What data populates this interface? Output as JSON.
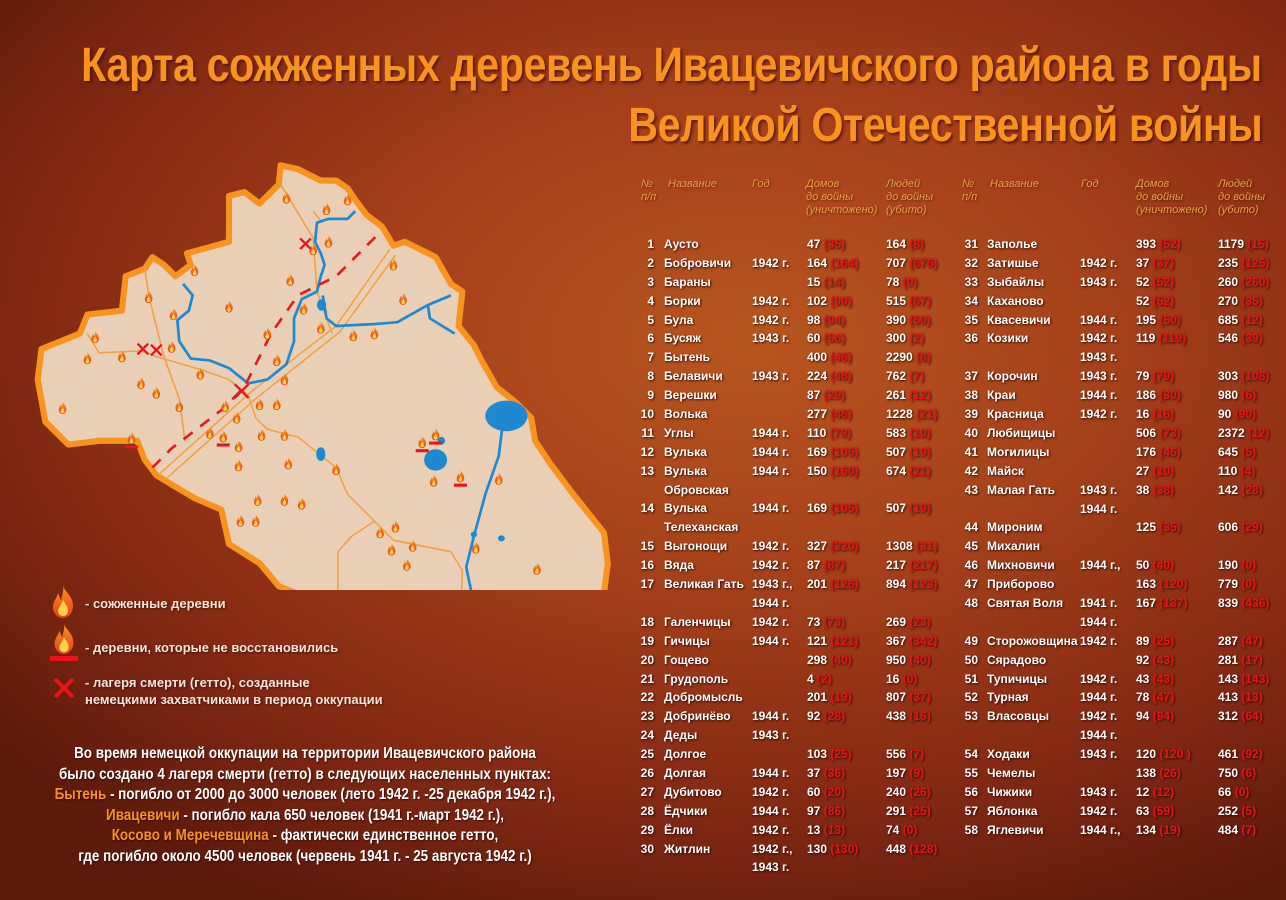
{
  "title": {
    "line1": "Карта сожженных деревень Ивацевичского района в годы",
    "line2": "Великой Отечественной войны"
  },
  "colors": {
    "title": "#f7931e",
    "map_fill": "#e8cfb6",
    "border": "#f7931e",
    "river": "#1e88d0",
    "road": "#f0a040",
    "railway": "#e01e1e",
    "destroyed_value": "#e8141a",
    "header": "#e9a04a"
  },
  "table": {
    "headers": {
      "num": "№\nп/п",
      "name": "Название",
      "year": "Год",
      "houses": "Домов\nдо войны\n(уничтожено)",
      "people": "Людей\nдо войны\n(убито)"
    },
    "left_rows": [
      {
        "n": "1",
        "name": "Аусто",
        "year": "",
        "h": "47",
        "hd": "35",
        "p": "164",
        "pk": "8"
      },
      {
        "n": "2",
        "name": "Бобровичи",
        "year": "1942 г.",
        "h": "164",
        "hd": "164",
        "p": "707",
        "pk": "676"
      },
      {
        "n": "3",
        "name": "Бараны",
        "year": "",
        "h": "15",
        "hd": "14",
        "p": "78",
        "pk": "0"
      },
      {
        "n": "4",
        "name": "Борки",
        "year": "1942 г.",
        "h": "102",
        "hd": "90",
        "p": "515",
        "pk": "57"
      },
      {
        "n": "5",
        "name": "Була",
        "year": "1942 г.",
        "h": "98",
        "hd": "94",
        "p": "390",
        "pk": "50"
      },
      {
        "n": "6",
        "name": "Бусяж",
        "year": "1943 г.",
        "h": "60",
        "hd": "56",
        "p": "300",
        "pk": "2"
      },
      {
        "n": "7",
        "name": "Бытень",
        "year": "",
        "h": "400",
        "hd": "46",
        "p": "2290",
        "pk": "8"
      },
      {
        "n": "8",
        "name": "Белавичи",
        "year": "1943 г.",
        "h": "224",
        "hd": "48",
        "p": "762",
        "pk": "7"
      },
      {
        "n": "9",
        "name": "Верешки",
        "year": "",
        "h": "87",
        "hd": "29",
        "p": "261",
        "pk": "12"
      },
      {
        "n": "10",
        "name": "Волька",
        "year": "",
        "h": "277",
        "hd": "46",
        "p": "1228",
        "pk": "21"
      },
      {
        "n": "11",
        "name": "Углы",
        "year": "1944 г.",
        "h": "110",
        "hd": "79",
        "p": "583",
        "pk": "10"
      },
      {
        "n": "12",
        "name": "Вулька",
        "year": "1944 г.",
        "h": "169",
        "hd": "105",
        "p": "507",
        "pk": "19"
      },
      {
        "n": "13",
        "name": "Вулька\nОбровская",
        "year": "1944 г.",
        "h": "150",
        "hd": "150",
        "p": "674",
        "pk": "21"
      },
      {
        "n": "14",
        "name": "Вулька\nТелеханская",
        "year": "1944 г.",
        "h": "169",
        "hd": "105",
        "p": "507",
        "pk": "19"
      },
      {
        "n": "15",
        "name": "Выгонощи",
        "year": "1942 г.",
        "h": "327",
        "hd": "320",
        "p": "1308",
        "pk": "31"
      },
      {
        "n": "16",
        "name": "Вяда",
        "year": "1942 г.",
        "h": "87",
        "hd": "87",
        "p": "217",
        "pk": "217"
      },
      {
        "n": "17",
        "name": "Великая Гать",
        "year": "1943 г.,\n1944 г.",
        "h": "201",
        "hd": "126",
        "p": "894",
        "pk": "123"
      },
      {
        "n": "18",
        "name": "Галенчицы",
        "year": "1942 г.",
        "h": "73",
        "hd": "73",
        "p": "269",
        "pk": "23"
      },
      {
        "n": "19",
        "name": "Гичицы",
        "year": "1944 г.",
        "h": "121",
        "hd": "121",
        "p": "367",
        "pk": "342"
      },
      {
        "n": "20",
        "name": "Гощево",
        "year": "",
        "h": "298",
        "hd": "40",
        "p": "950",
        "pk": "40"
      },
      {
        "n": "21",
        "name": "Грудополь",
        "year": "",
        "h": "4",
        "hd": "2",
        "p": "16",
        "pk": "0"
      },
      {
        "n": "22",
        "name": "Добромысль",
        "year": "",
        "h": "201",
        "hd": "19",
        "p": "807",
        "pk": "37"
      },
      {
        "n": "23",
        "name": "Добринёво",
        "year": "1944 г.",
        "h": "92",
        "hd": "28",
        "p": "438",
        "pk": "16"
      },
      {
        "n": "24",
        "name": "Деды",
        "year": "1943 г.",
        "h": "",
        "hd": "",
        "p": "",
        "pk": ""
      },
      {
        "n": "25",
        "name": "Долгое",
        "year": "",
        "h": "103",
        "hd": "25",
        "p": "556",
        "pk": "7"
      },
      {
        "n": "26",
        "name": "Долгая",
        "year": "1944 г.",
        "h": "37",
        "hd": "36",
        "p": "197",
        "pk": "9"
      },
      {
        "n": "27",
        "name": "Дубитово",
        "year": "1942 г.",
        "h": "60",
        "hd": "20",
        "p": "240",
        "pk": "26"
      },
      {
        "n": "28",
        "name": "Ёдчики",
        "year": "1944 г.",
        "h": "97",
        "hd": "86",
        "p": "291",
        "pk": "25"
      },
      {
        "n": "29",
        "name": "Ёлки",
        "year": "1942 г.",
        "h": "13",
        "hd": "13",
        "p": "74",
        "pk": "0"
      },
      {
        "n": "30",
        "name": "Житлин",
        "year": "1942 г.,\n1943 г.",
        "h": "130",
        "hd": "130",
        "p": "448",
        "pk": "128"
      }
    ],
    "right_rows": [
      {
        "n": "31",
        "name": "Заполье",
        "year": "",
        "h": "393",
        "hd": "52",
        "p": "1179",
        "pk": "15"
      },
      {
        "n": "32",
        "name": "Затишье",
        "year": "1942 г.",
        "h": "37",
        "hd": "37",
        "p": "235",
        "pk": "125"
      },
      {
        "n": "33",
        "name": "Зыбайлы",
        "year": "1943 г.",
        "h": "52",
        "hd": "52",
        "p": "260",
        "pk": "260"
      },
      {
        "n": "34",
        "name": "Каханово",
        "year": "",
        "h": "52",
        "hd": "52",
        "p": "270",
        "pk": "35"
      },
      {
        "n": "35",
        "name": "Квасевичи",
        "year": "1944 г.",
        "h": "195",
        "hd": "50",
        "p": "685",
        "pk": "12"
      },
      {
        "n": "36",
        "name": "Козики",
        "year": "1942 г.\n1943 г.",
        "h": "119",
        "hd": "119",
        "p": "546",
        "pk": "39"
      },
      {
        "n": "37",
        "name": "Корочин",
        "year": "1943 г.",
        "h": "79",
        "hd": "79",
        "p": "303",
        "pk": "108"
      },
      {
        "n": "38",
        "name": "Краи",
        "year": "1944 г.",
        "h": "186",
        "hd": "30",
        "p": "980",
        "pk": "6"
      },
      {
        "n": "39",
        "name": "Красница",
        "year": "1942 г.",
        "h": "16",
        "hd": "16",
        "p": "90",
        "pk": "90"
      },
      {
        "n": "40",
        "name": "Любищицы",
        "year": "",
        "h": "506",
        "hd": "73",
        "p": "2372",
        "pk": "12"
      },
      {
        "n": "41",
        "name": "Могилицы",
        "year": "",
        "h": "176",
        "hd": "46",
        "p": "645",
        "pk": "5"
      },
      {
        "n": "42",
        "name": "Майск",
        "year": "",
        "h": "27",
        "hd": "10",
        "p": "110",
        "pk": "4"
      },
      {
        "n": "43",
        "name": "Малая Гать",
        "year": "1943 г.\n1944 г.",
        "h": "38",
        "hd": "38",
        "p": "142",
        "pk": "28"
      },
      {
        "n": "44",
        "name": "Мироним",
        "year": "",
        "h": "125",
        "hd": "35",
        "p": "606",
        "pk": "29"
      },
      {
        "n": "45",
        "name": "Михалин",
        "year": "",
        "h": "",
        "hd": "",
        "p": "",
        "pk": ""
      },
      {
        "n": "46",
        "name": "Михновичи",
        "year": "1944 г.,",
        "h": "50",
        "hd": "40",
        "p": "190",
        "pk": "0"
      },
      {
        "n": "47",
        "name": "Приборово",
        "year": "",
        "h": "163",
        "hd": "120",
        "p": "779",
        "pk": "0"
      },
      {
        "n": "48",
        "name": "Святая Воля",
        "year": "1941 г.\n1944 г.",
        "h": "167",
        "hd": "137",
        "p": "839",
        "pk": "436"
      },
      {
        "n": "49",
        "name": "Сторожовщина",
        "year": "1942 г.",
        "h": "89",
        "hd": "25",
        "p": "287",
        "pk": "47"
      },
      {
        "n": "50",
        "name": "Сярадово",
        "year": "",
        "h": "92",
        "hd": "43",
        "p": "281",
        "pk": "17"
      },
      {
        "n": "51",
        "name": "Тупичицы",
        "year": "1942 г.",
        "h": "43",
        "hd": "43",
        "p": "143",
        "pk": "143"
      },
      {
        "n": "52",
        "name": "Турная",
        "year": "1944 г.",
        "h": "78",
        "hd": "47",
        "p": "413",
        "pk": "13"
      },
      {
        "n": "53",
        "name": "Власовцы",
        "year": "1942 г.\n1944 г.",
        "h": "94",
        "hd": "94",
        "p": "312",
        "pk": "64"
      },
      {
        "n": "54",
        "name": "Ходаки",
        "year": "1943 г.",
        "h": "120",
        "hd": "120 ",
        "p": "461",
        "pk": "92"
      },
      {
        "n": "55",
        "name": "Чемелы",
        "year": "",
        "h": "138",
        "hd": "26",
        "p": "750",
        "pk": "6"
      },
      {
        "n": "56",
        "name": "Чижики",
        "year": "1943 г.",
        "h": "12",
        "hd": "12",
        "p": "66",
        "pk": "0"
      },
      {
        "n": "57",
        "name": "Яблонка",
        "year": "1942 г.",
        "h": "63",
        "hd": "59",
        "p": "252",
        "pk": "5"
      },
      {
        "n": "58",
        "name": "Яглевичи",
        "year": "1944 г.,",
        "h": "134",
        "hd": "19",
        "p": "484",
        "pk": "7"
      }
    ]
  },
  "legend": {
    "burned": {
      "icon": "fire-icon",
      "label": "- сожженные деревни"
    },
    "not_restored": {
      "icon": "fire-with-bar-icon",
      "label": "- деревни, которые не восстановились"
    },
    "camps": {
      "icon": "red-cross-icon",
      "label": "- лагеря смерти (гетто), созданные\nнемецкими захватчиками в период оккупации"
    }
  },
  "note": {
    "line1": "Во время немецкой оккупации на территории Ивацевичского района",
    "line2": "было создано 4 лагеря смерти (гетто) в следующих населенных пунктах:",
    "l3_hl": "Бытень",
    "l3_rest": " - погибло от 2000 до 3000 человек (лето 1942 г. -25 декабря 1942 г.),",
    "l4_hl": "Ивацевичи",
    "l4_rest": " - погибло кала 650 человек (1941 г.-март 1942 г.),",
    "l5_hl": "Косово и Мерeчевщина",
    "l5_rest": " - фактически единственное гетто,",
    "line6": "где погибло около 4500 человек (червень 1941 г. - 25 августа 1942 г.)"
  }
}
